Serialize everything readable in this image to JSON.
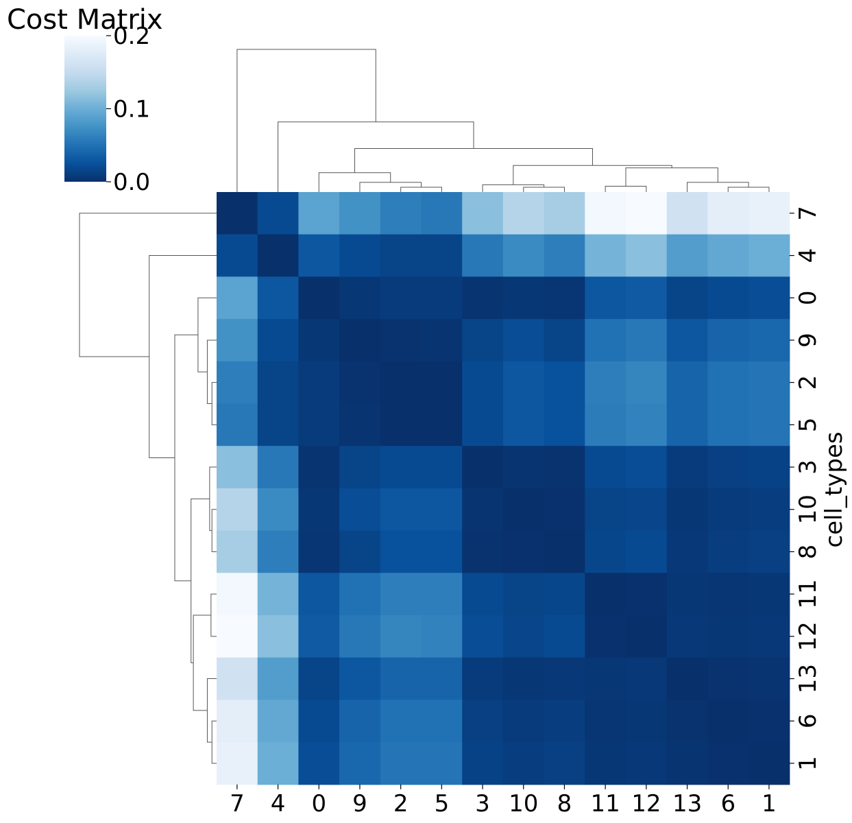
{
  "chart_data": {
    "type": "heatmap",
    "title": "Cost Matrix",
    "ylabel": "cell_types",
    "xlabel": "",
    "col_labels": [
      "7",
      "4",
      "0",
      "9",
      "2",
      "5",
      "3",
      "10",
      "8",
      "11",
      "12",
      "13",
      "6",
      "1"
    ],
    "row_labels": [
      "7",
      "4",
      "0",
      "9",
      "2",
      "5",
      "3",
      "10",
      "8",
      "11",
      "12",
      "13",
      "6",
      "1"
    ],
    "values": [
      [
        0.0,
        0.02,
        0.09,
        0.075,
        0.06,
        0.055,
        0.115,
        0.14,
        0.13,
        0.195,
        0.2,
        0.16,
        0.18,
        0.185
      ],
      [
        0.02,
        0.0,
        0.03,
        0.02,
        0.015,
        0.015,
        0.055,
        0.07,
        0.06,
        0.105,
        0.115,
        0.085,
        0.095,
        0.1
      ],
      [
        0.09,
        0.03,
        0.0,
        0.005,
        0.008,
        0.008,
        0.003,
        0.005,
        0.004,
        0.03,
        0.032,
        0.015,
        0.02,
        0.022
      ],
      [
        0.075,
        0.02,
        0.005,
        0.0,
        0.002,
        0.003,
        0.015,
        0.022,
        0.015,
        0.05,
        0.055,
        0.03,
        0.04,
        0.042
      ],
      [
        0.06,
        0.015,
        0.008,
        0.002,
        0.0,
        0.0,
        0.02,
        0.03,
        0.025,
        0.06,
        0.065,
        0.04,
        0.05,
        0.052
      ],
      [
        0.055,
        0.015,
        0.008,
        0.003,
        0.0,
        0.0,
        0.02,
        0.03,
        0.025,
        0.058,
        0.063,
        0.04,
        0.05,
        0.052
      ],
      [
        0.115,
        0.055,
        0.003,
        0.015,
        0.02,
        0.02,
        0.0,
        0.003,
        0.002,
        0.02,
        0.022,
        0.008,
        0.012,
        0.014
      ],
      [
        0.14,
        0.07,
        0.005,
        0.022,
        0.03,
        0.03,
        0.003,
        0.0,
        0.001,
        0.015,
        0.016,
        0.005,
        0.008,
        0.01
      ],
      [
        0.13,
        0.06,
        0.004,
        0.015,
        0.025,
        0.025,
        0.002,
        0.001,
        0.0,
        0.017,
        0.02,
        0.006,
        0.01,
        0.012
      ],
      [
        0.195,
        0.105,
        0.03,
        0.05,
        0.06,
        0.06,
        0.02,
        0.015,
        0.017,
        0.0,
        0.001,
        0.005,
        0.004,
        0.005
      ],
      [
        0.2,
        0.115,
        0.032,
        0.055,
        0.065,
        0.063,
        0.022,
        0.016,
        0.02,
        0.001,
        0.0,
        0.006,
        0.005,
        0.006
      ],
      [
        0.16,
        0.085,
        0.015,
        0.03,
        0.04,
        0.04,
        0.008,
        0.005,
        0.006,
        0.005,
        0.006,
        0.0,
        0.002,
        0.003
      ],
      [
        0.18,
        0.095,
        0.02,
        0.04,
        0.05,
        0.05,
        0.012,
        0.008,
        0.01,
        0.004,
        0.005,
        0.002,
        0.0,
        0.001
      ],
      [
        0.185,
        0.1,
        0.022,
        0.042,
        0.052,
        0.052,
        0.014,
        0.01,
        0.012,
        0.005,
        0.006,
        0.003,
        0.001,
        0.0
      ]
    ],
    "colorbar": {
      "colormap": "Blues_r",
      "vmin": 0.0,
      "vmax": 0.2,
      "tick_labels": [
        "0.0",
        "0.1",
        "0.2"
      ]
    },
    "dendrogram_merges": [
      [
        "2",
        "5",
        0.01
      ],
      [
        "9",
        "2|5",
        0.02
      ],
      [
        "0",
        "9|2|5",
        0.04
      ],
      [
        "10",
        "8",
        0.01
      ],
      [
        "3",
        "10|8",
        0.015
      ],
      [
        "11",
        "12",
        0.012
      ],
      [
        "6",
        "1",
        0.01
      ],
      [
        "13",
        "6|1",
        0.02
      ],
      [
        "11|12",
        "13|6|1",
        0.05
      ],
      [
        "3|10|8",
        "11|12|13|6|1",
        0.055
      ],
      [
        "0|9|2|5",
        "3|10|8|11|12|13|6|1",
        0.09
      ],
      [
        "4",
        "0|9|2|5|3|10|8|11|12|13|6|1",
        0.145
      ],
      [
        "7",
        "4|0|9|2|5|3|10|8|11|12|13|6|1",
        0.295
      ]
    ],
    "grid": false
  }
}
